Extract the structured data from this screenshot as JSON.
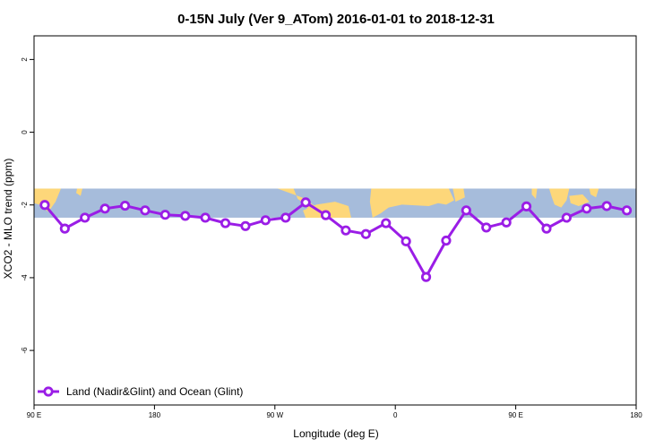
{
  "chart_data": {
    "type": "line",
    "title": "0-15N July (Ver 9_ATom)   2016-01-01 to 2018-12-31",
    "xlabel": "Longitude (deg E)",
    "ylabel": "XCO2 - MLO trend (ppm)",
    "x_ticks": [
      {
        "value": 90,
        "label": "90 E"
      },
      {
        "value": 180,
        "label": "180"
      },
      {
        "value": 270,
        "label": "90 W"
      },
      {
        "value": 360,
        "label": "0"
      },
      {
        "value": 450,
        "label": "90 E"
      },
      {
        "value": 540,
        "label": "180"
      }
    ],
    "y_ticks": [
      {
        "value": 2,
        "label": "2"
      },
      {
        "value": 0,
        "label": "0"
      },
      {
        "value": -2,
        "label": "-2"
      },
      {
        "value": -4,
        "label": "-4"
      },
      {
        "value": -6,
        "label": "-6"
      }
    ],
    "xlim": [
      90,
      540
    ],
    "ylim": [
      -7.5,
      2.65
    ],
    "grid": false,
    "legend": {
      "position": "bottom-left"
    },
    "map_band": {
      "ylim": [
        -2.35,
        -1.55
      ],
      "ocean_color": "#a6bcdb",
      "land_color": "#fdd77a"
    },
    "series": [
      {
        "name": "Land (Nadir&Glint) and Ocean (Glint)",
        "color": "#9a1de6",
        "x": [
          98,
          113,
          128,
          143,
          158,
          173,
          188,
          203,
          218,
          233,
          248,
          263,
          278,
          293,
          308,
          323,
          338,
          353,
          368,
          383,
          398,
          413,
          428,
          443,
          458,
          473,
          488,
          503,
          518,
          533
        ],
        "y": [
          -2.0,
          -2.65,
          -2.35,
          -2.1,
          -2.02,
          -2.15,
          -2.27,
          -2.3,
          -2.35,
          -2.5,
          -2.58,
          -2.42,
          -2.35,
          -1.93,
          -2.28,
          -2.7,
          -2.8,
          -2.5,
          -3.0,
          -3.98,
          -2.98,
          -2.15,
          -2.62,
          -2.48,
          -2.04,
          -2.65,
          -2.35,
          -2.1,
          -2.03,
          -2.15
        ]
      }
    ]
  }
}
